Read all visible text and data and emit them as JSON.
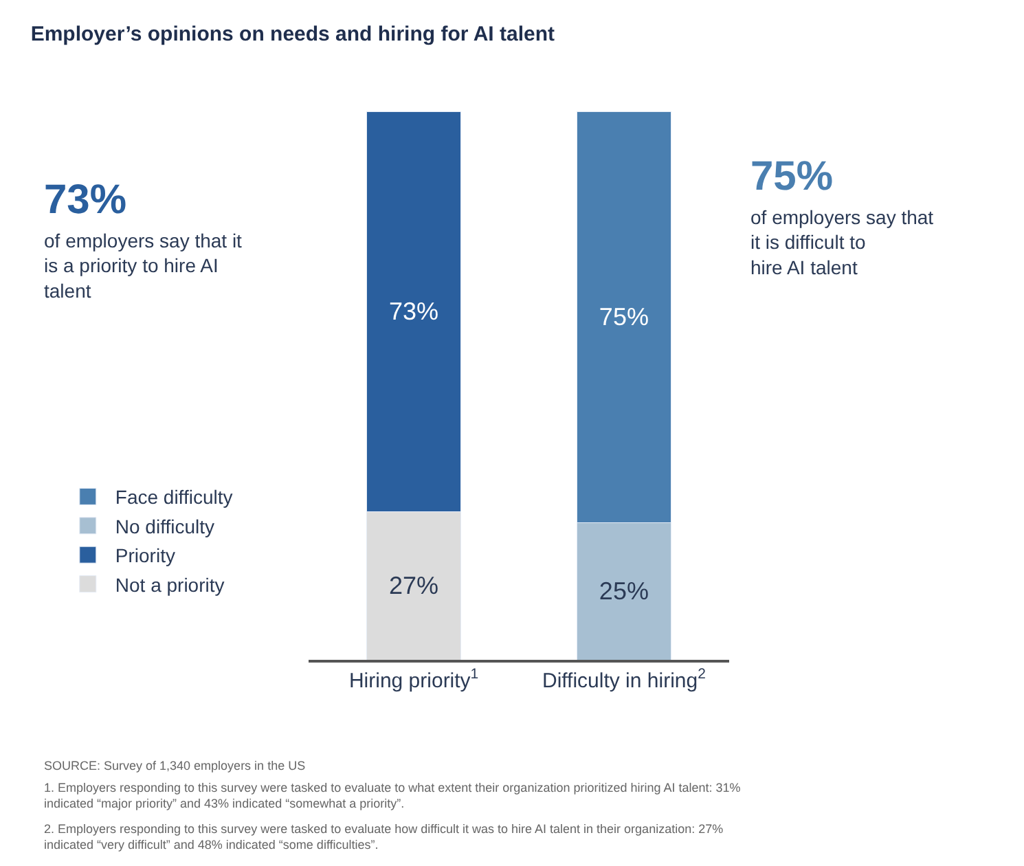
{
  "chart_data": {
    "type": "bar",
    "stacked": true,
    "title": "Employer’s opinions on needs and hiring for AI talent",
    "categories": [
      "Hiring priority$^{1}$",
      "Difficulty in hiring$^{2}$"
    ],
    "series": [
      {
        "name": "Not a priority",
        "color": "#dcdcdc",
        "values": [
          27,
          null
        ],
        "value_labels": [
          "27%",
          null
        ]
      },
      {
        "name": "Priority",
        "color": "#2a5f9e",
        "values": [
          73,
          null
        ],
        "value_labels": [
          "73%",
          null
        ]
      },
      {
        "name": "No difficulty",
        "color": "#a7bfd2",
        "values": [
          null,
          25
        ],
        "value_labels": [
          null,
          "25%"
        ]
      },
      {
        "name": "Face difficulty",
        "color": "#4a7fb0",
        "values": [
          null,
          75
        ],
        "value_labels": [
          null,
          "75%"
        ]
      }
    ],
    "tick_labels": "x",
    "legend": "left",
    "annotations": [
      "73%",
      "of employers say that it is a priority to hire AI talent",
      "75%",
      "of employers say that it is difficult to hire AI talent",
      "SOURCE: Survey of 1,340 employers in the US",
      "1. Employers responding to this survey were tasked to evaluate to what extent their organization prioritized hiring AI talent: 31% indicated “major priority” and 43% indicated “somewhat a priority”.",
      "2. Employers responding to this survey were tasked to evaluate how difficult it was to hire AI talent in their organization: 27% indicated “very difficult” and 48% indicated “some difficulties”."
    ]
  }
}
